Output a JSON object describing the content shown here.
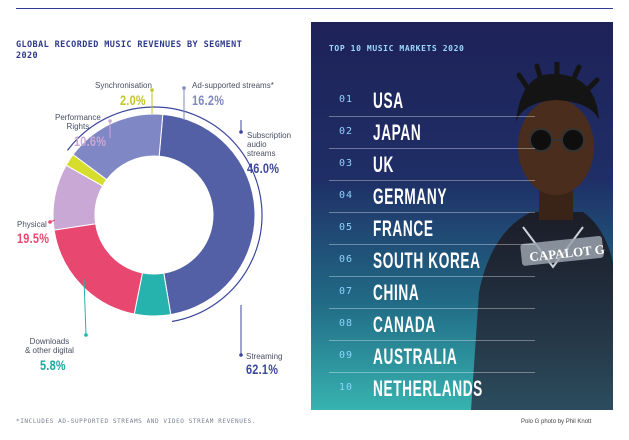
{
  "chart_data": {
    "type": "pie",
    "title": "GLOBAL RECORDED MUSIC REVENUES BY SEGMENT\n2020",
    "segments": [
      {
        "name": "Subscription audio streams",
        "label": "Subscription\naudio\nstreams",
        "value": 46.0,
        "display": "46.0%",
        "color": "#5460a6",
        "side": "right"
      },
      {
        "name": "Downloads & other digital",
        "label": "Downloads\n& other digital",
        "value": 5.8,
        "display": "5.8%",
        "color": "#27b3ad",
        "side": "left"
      },
      {
        "name": "Physical",
        "label": "Physical",
        "value": 19.5,
        "display": "19.5%",
        "color": "#e8476f",
        "side": "left"
      },
      {
        "name": "Performance Rights",
        "label": "Performance\nRights",
        "value": 10.6,
        "display": "10.6%",
        "color": "#c9a8d6",
        "side": "left"
      },
      {
        "name": "Synchronisation",
        "label": "Synchronisation",
        "value": 2.0,
        "display": "2.0%",
        "color": "#d7dd2c",
        "side": "top"
      },
      {
        "name": "Ad-supported streams*",
        "label": "Ad-supported streams*",
        "value": 16.2,
        "display": "16.2%",
        "color": "#7f87c5",
        "side": "top"
      }
    ],
    "streaming_total": {
      "label": "Streaming",
      "value": 62.1,
      "display": "62.1%"
    },
    "percent_colors": {
      "Subscription audio streams": "#3c479c",
      "Downloads & other digital": "#1aa8a2",
      "Physical": "#e8476f",
      "Performance Rights": "#c9a8d6",
      "Synchronisation": "#c2c626",
      "Ad-supported streams*": "#7f87c5",
      "Streaming": "#3c479c"
    }
  },
  "footnote": "*INCLUDES AD-SUPPORTED STREAMS AND VIDEO STREAM REVENUES.",
  "markets_panel": {
    "title": "TOP 10 MUSIC MARKETS 2020",
    "rows": [
      {
        "rank": "01",
        "name": "USA"
      },
      {
        "rank": "02",
        "name": "JAPAN"
      },
      {
        "rank": "03",
        "name": "UK"
      },
      {
        "rank": "04",
        "name": "GERMANY"
      },
      {
        "rank": "05",
        "name": "FRANCE"
      },
      {
        "rank": "06",
        "name": "SOUTH KOREA"
      },
      {
        "rank": "07",
        "name": "CHINA"
      },
      {
        "rank": "08",
        "name": "CANADA"
      },
      {
        "rank": "09",
        "name": "AUSTRALIA"
      },
      {
        "rank": "10",
        "name": "NETHERLANDS"
      }
    ],
    "photo_text": "CAPALOT G"
  },
  "photo_credit": "Polo G photo by Phil Knott"
}
